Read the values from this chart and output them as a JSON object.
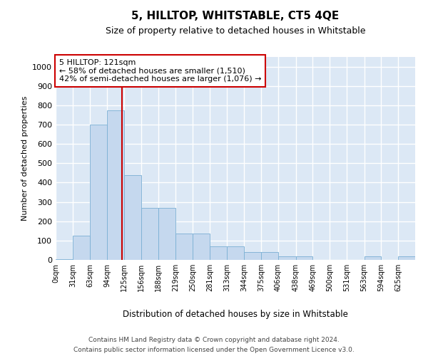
{
  "title": "5, HILLTOP, WHITSTABLE, CT5 4QE",
  "subtitle": "Size of property relative to detached houses in Whitstable",
  "xlabel": "Distribution of detached houses by size in Whitstable",
  "ylabel": "Number of detached properties",
  "bar_color": "#c5d8ee",
  "bar_edge_color": "#7aafd4",
  "background_color": "#dce8f5",
  "grid_color": "#ffffff",
  "annotation_box_color": "#cc0000",
  "annotation_text": "5 HILLTOP: 121sqm\n← 58% of detached houses are smaller (1,510)\n42% of semi-detached houses are larger (1,076) →",
  "property_line_x": 121,
  "bin_starts": [
    0,
    31,
    63,
    94,
    125,
    156,
    188,
    219,
    250,
    281,
    313,
    344,
    375,
    406,
    438,
    469,
    500,
    531,
    563,
    594,
    625
  ],
  "bin_widths": [
    31,
    32,
    31,
    31,
    31,
    32,
    31,
    31,
    31,
    32,
    31,
    31,
    31,
    32,
    31,
    31,
    31,
    32,
    31,
    31,
    31
  ],
  "values": [
    2,
    125,
    700,
    775,
    440,
    270,
    270,
    135,
    135,
    70,
    70,
    40,
    40,
    18,
    18,
    0,
    0,
    0,
    18,
    0,
    18
  ],
  "ylim": [
    0,
    1050
  ],
  "yticks": [
    0,
    100,
    200,
    300,
    400,
    500,
    600,
    700,
    800,
    900,
    1000
  ],
  "categories": [
    "0sqm",
    "31sqm",
    "63sqm",
    "94sqm",
    "125sqm",
    "156sqm",
    "188sqm",
    "219sqm",
    "250sqm",
    "281sqm",
    "313sqm",
    "344sqm",
    "375sqm",
    "406sqm",
    "438sqm",
    "469sqm",
    "500sqm",
    "531sqm",
    "563sqm",
    "594sqm",
    "625sqm"
  ],
  "footer_line1": "Contains HM Land Registry data © Crown copyright and database right 2024.",
  "footer_line2": "Contains public sector information licensed under the Open Government Licence v3.0."
}
